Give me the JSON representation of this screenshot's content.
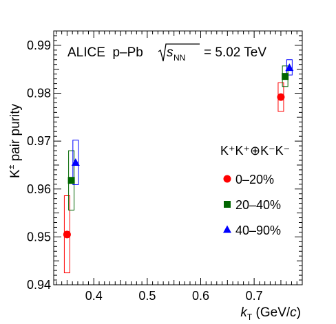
{
  "chart_data": {
    "type": "scatter",
    "title_prefix": "ALICE  p–Pb",
    "title_energy_symbol": "s",
    "title_energy_subscript": "NN",
    "title_energy_value": "= 5.02 TeV",
    "xlabel_symbol": "k",
    "xlabel_subscript": "T",
    "xlabel_unit_open": "(GeV/",
    "xlabel_unit_c": "c",
    "xlabel_unit_close": ")",
    "ylabel_base": "K",
    "ylabel_sup": "±",
    "ylabel_text": " pair purity",
    "xlim": [
      0.325,
      0.79
    ],
    "ylim": [
      0.94,
      0.993
    ],
    "xticks": [
      0.4,
      0.5,
      0.6,
      0.7
    ],
    "xtick_labels": [
      "0.4",
      "0.5",
      "0.6",
      "0.7"
    ],
    "yticks": [
      0.94,
      0.95,
      0.96,
      0.97,
      0.98,
      0.99
    ],
    "ytick_labels": [
      "0.94",
      "0.95",
      "0.96",
      "0.97",
      "0.98",
      "0.99"
    ],
    "legend_header": "K⁺K⁺⊕K⁻K⁻",
    "legend_position": "right",
    "grid": false,
    "series": [
      {
        "name": "0–20%",
        "color": "#ff0000",
        "marker": "circle",
        "points": [
          {
            "x": 0.35,
            "y": 0.9505,
            "sys_low": 0.9425,
            "sys_high": 0.9586
          },
          {
            "x": 0.75,
            "y": 0.9792,
            "sys_low": 0.9762,
            "sys_high": 0.9822
          }
        ]
      },
      {
        "name": "20–40%",
        "color": "#006600",
        "marker": "square",
        "points": [
          {
            "x": 0.358,
            "y": 0.9618,
            "sys_low": 0.9556,
            "sys_high": 0.968
          },
          {
            "x": 0.758,
            "y": 0.9835,
            "sys_low": 0.9814,
            "sys_high": 0.9857
          }
        ]
      },
      {
        "name": "40–90%",
        "color": "#0000ff",
        "marker": "triangle",
        "points": [
          {
            "x": 0.366,
            "y": 0.9655,
            "sys_low": 0.9609,
            "sys_high": 0.9702
          },
          {
            "x": 0.766,
            "y": 0.9853,
            "sys_low": 0.9838,
            "sys_high": 0.987
          }
        ]
      }
    ]
  }
}
